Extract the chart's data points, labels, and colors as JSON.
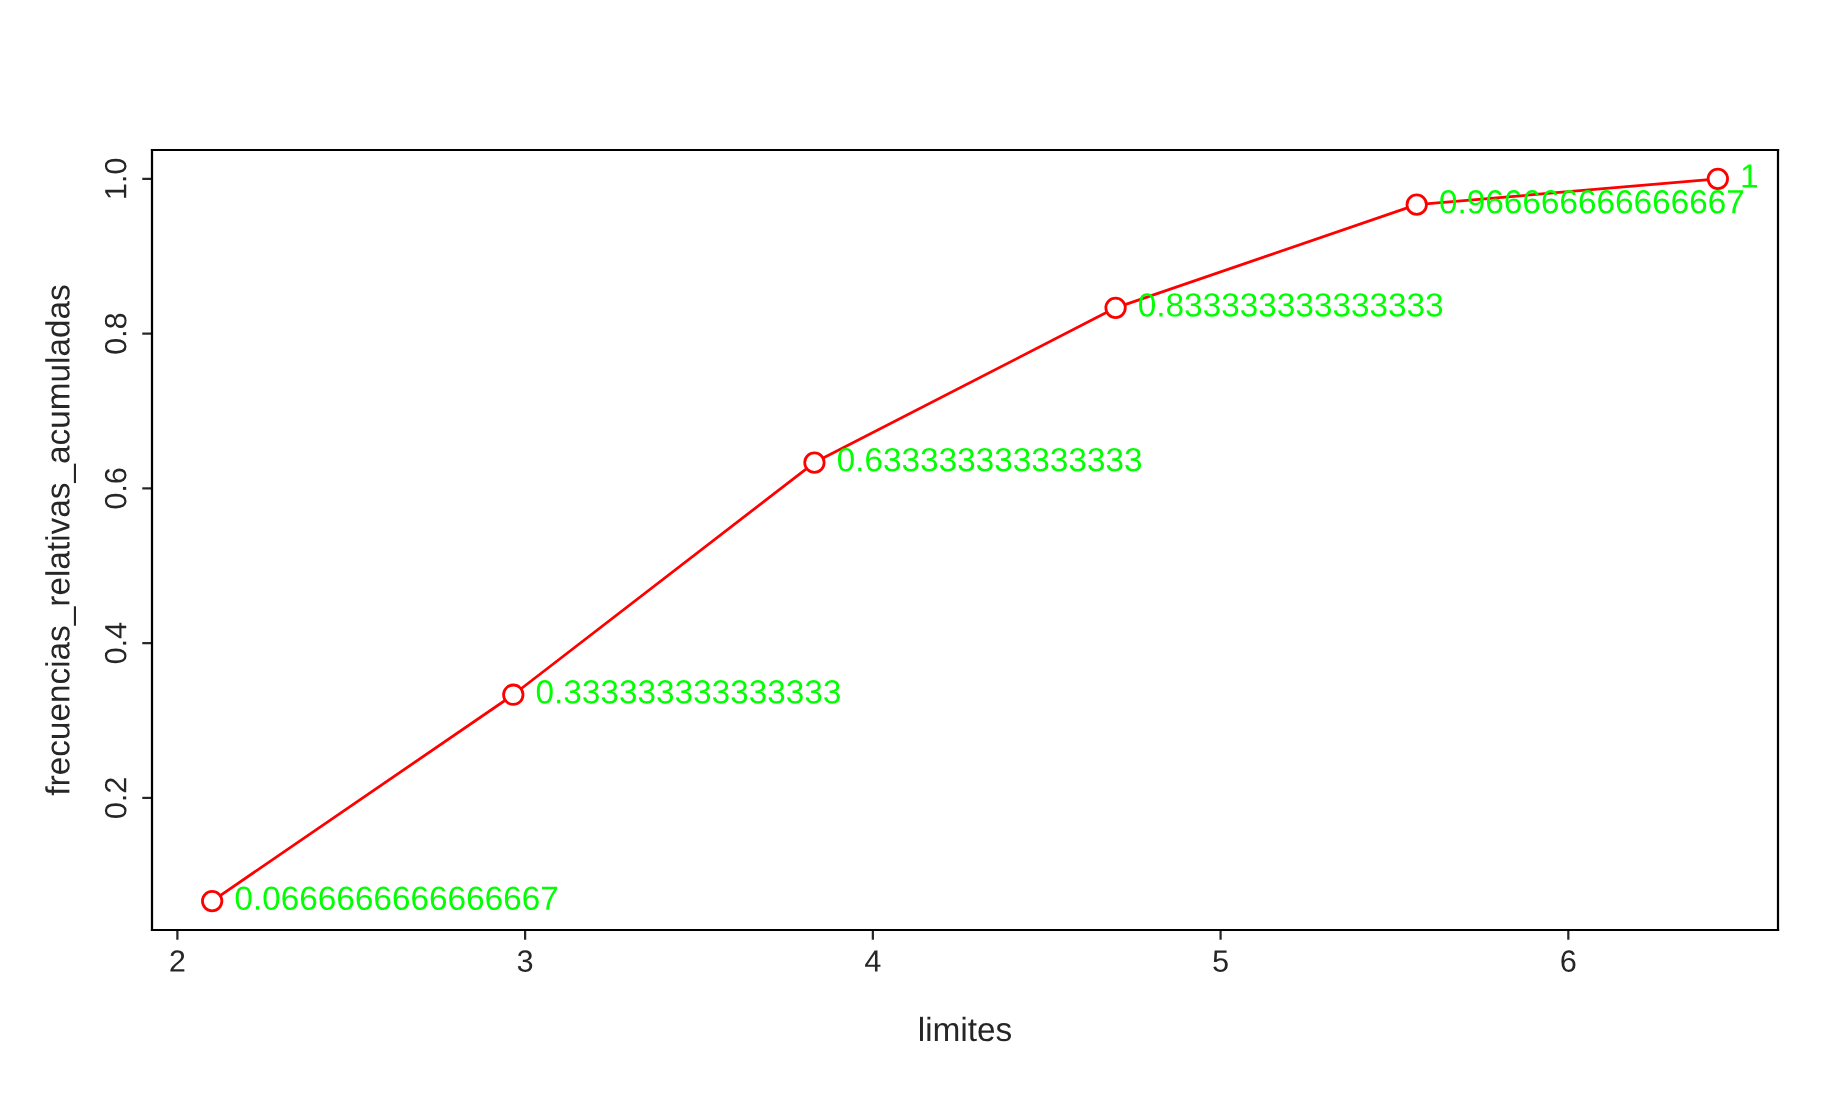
{
  "chart_data": {
    "type": "line",
    "x": [
      2.1,
      2.966,
      3.832,
      4.698,
      5.564,
      6.43
    ],
    "series": [
      {
        "color": "#ff0000",
        "values": [
          0.0666666666666667,
          0.333333333333333,
          0.633333333333333,
          0.833333333333333,
          0.966666666666667,
          1
        ]
      }
    ],
    "data_labels": true,
    "xlabel": "limites",
    "ylabel": "frecuencias_relativas_acumuladas",
    "xlim": [
      1.927,
      6.603
    ],
    "ylim": [
      0.0293,
      1.0373
    ],
    "xticks": [
      2,
      3,
      4,
      5,
      6
    ],
    "yticks": [
      0.2,
      0.4,
      0.6,
      0.8,
      {
        "value": 1,
        "label": "1.0"
      }
    ],
    "marker": "circle",
    "line_style": "solid",
    "grid": false,
    "legend": false
  }
}
